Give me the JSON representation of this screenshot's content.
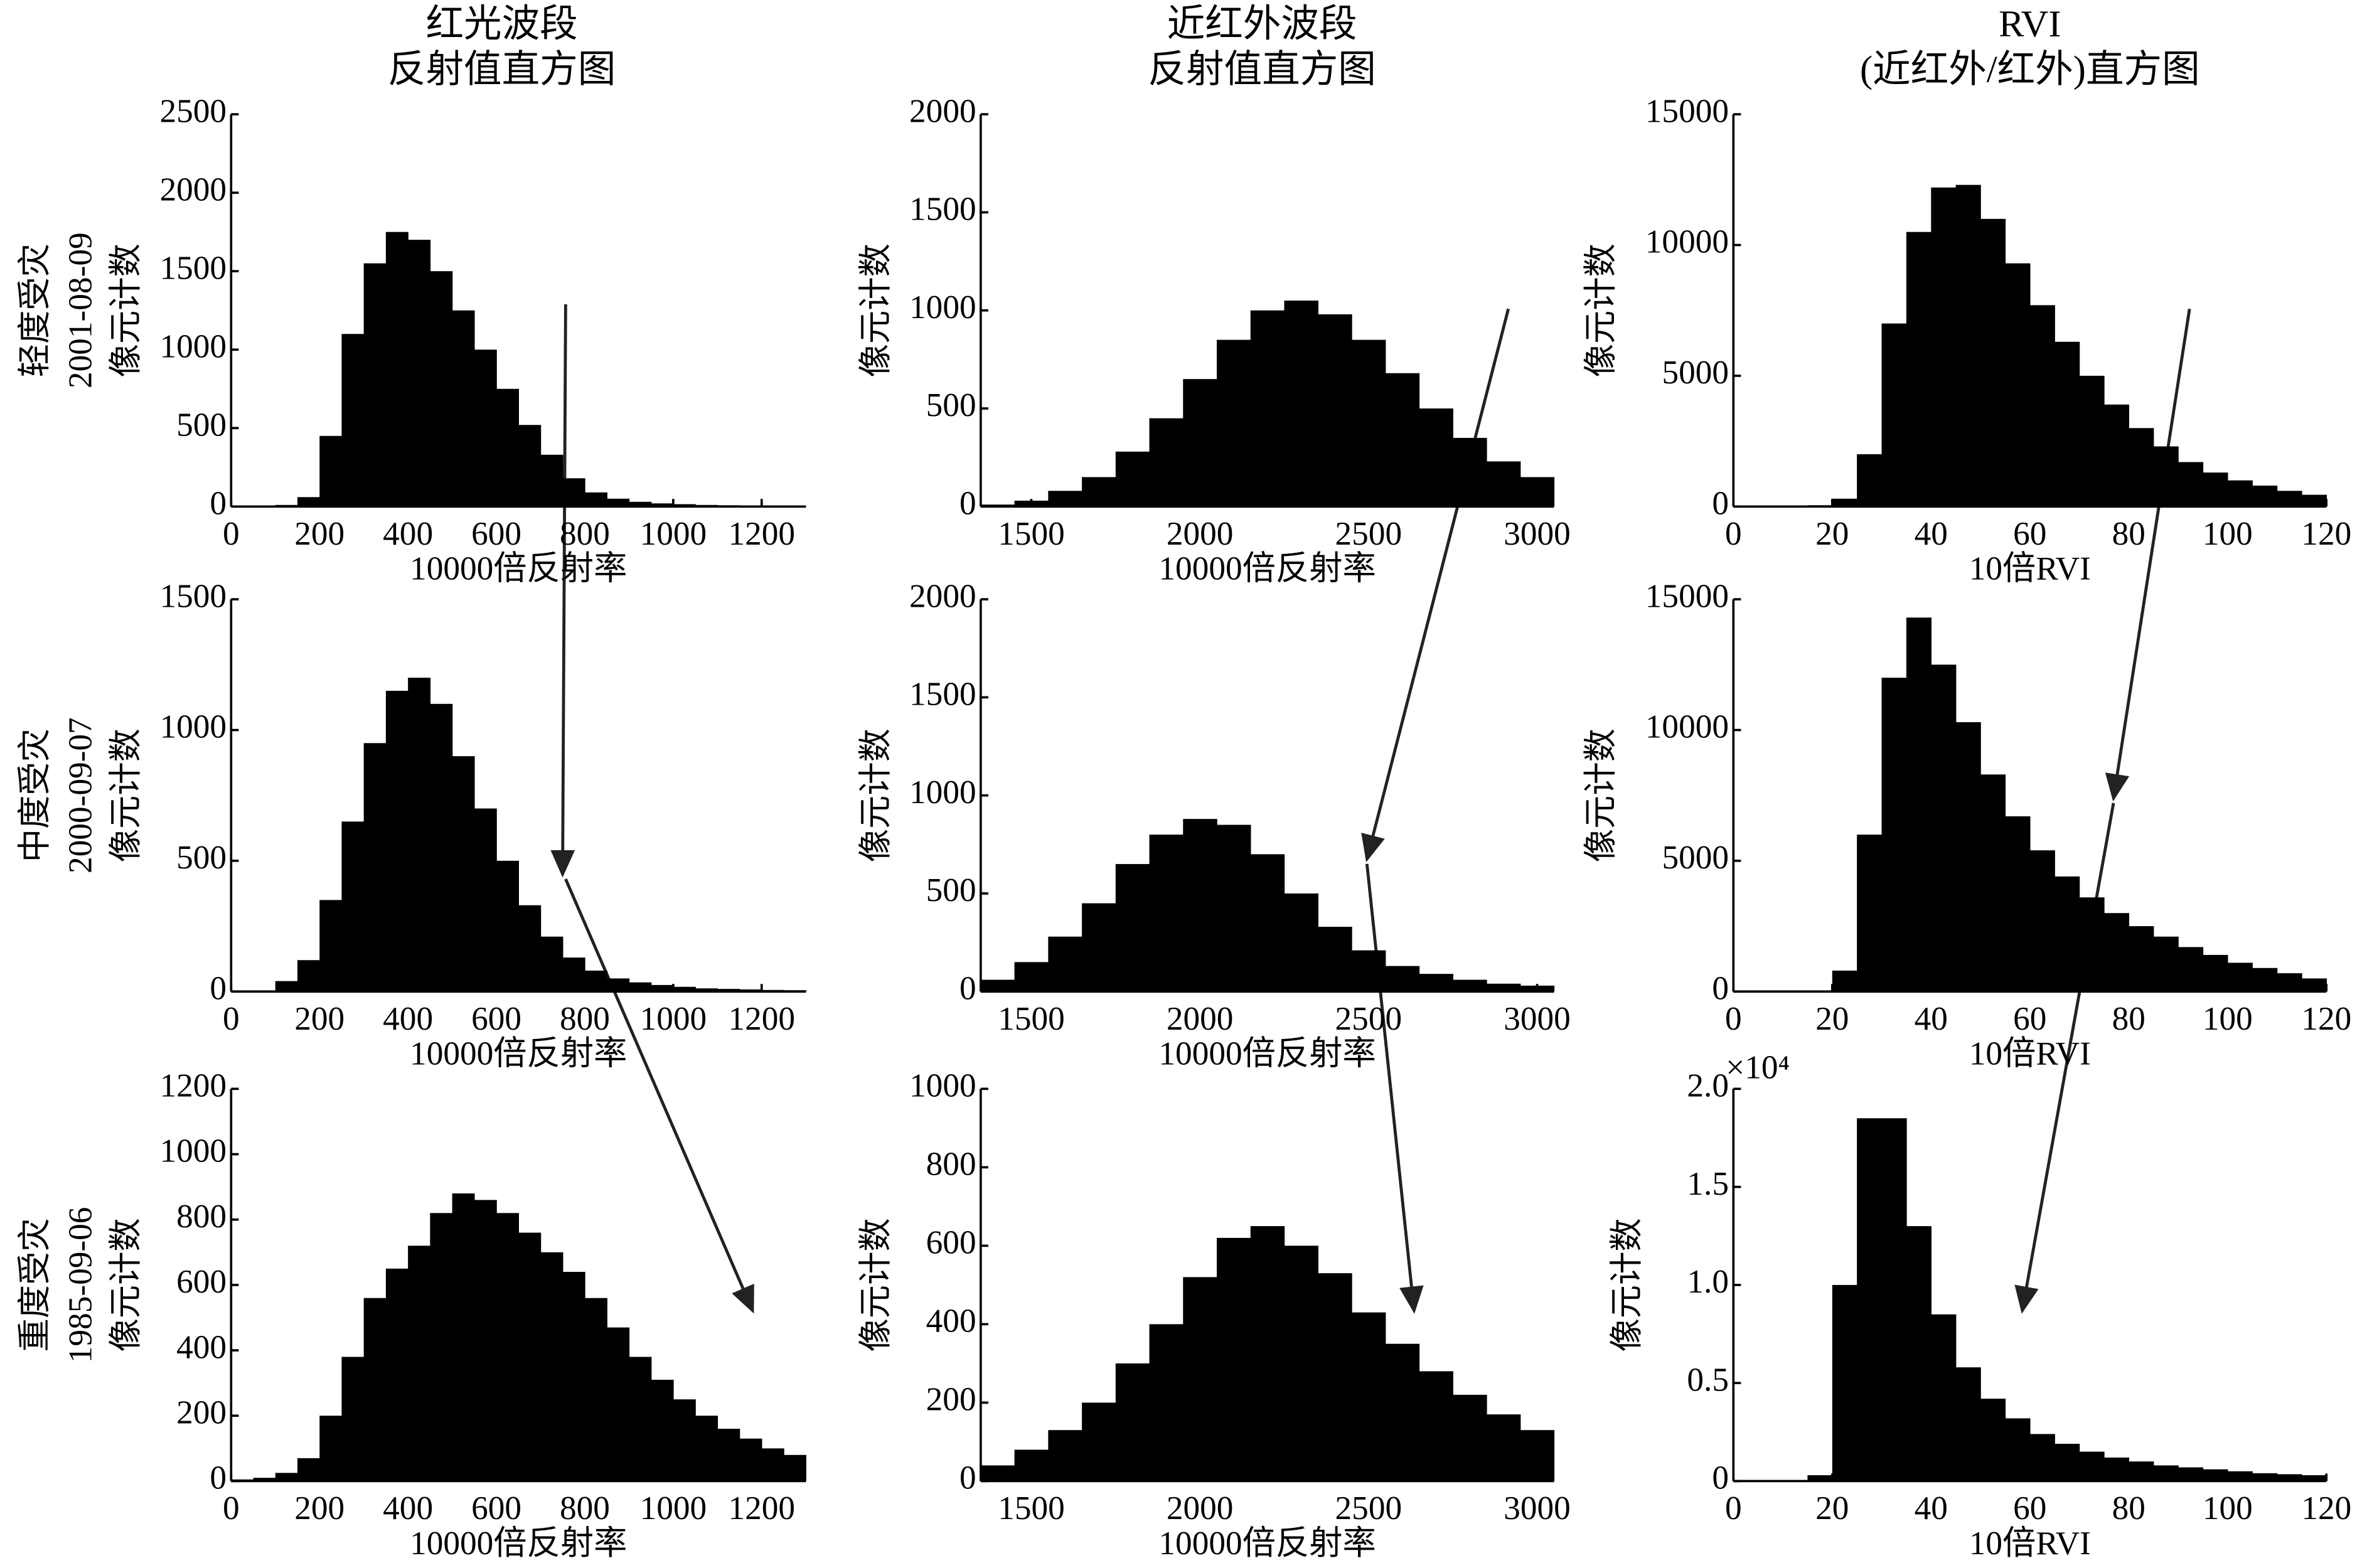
{
  "chart_data": [
    {
      "type": "histogram",
      "title": [
        "红光波段",
        "反射值直方图"
      ],
      "ylabel": [
        "轻度受灾",
        "2001-08-09",
        "像元计数"
      ],
      "xlabel": "10000倍反射率",
      "bins": [
        0,
        50,
        100,
        150,
        200,
        250,
        300,
        350,
        400,
        450,
        500,
        550,
        600,
        650,
        700,
        750,
        800,
        850,
        900,
        950,
        1000,
        1050,
        1100,
        1150,
        1200,
        1250,
        1300
      ],
      "values": [
        0,
        0,
        10,
        60,
        450,
        1100,
        1550,
        1750,
        1700,
        1500,
        1250,
        1000,
        750,
        520,
        330,
        180,
        90,
        50,
        30,
        20,
        15,
        10,
        8,
        6,
        5,
        4
      ],
      "color": "#000000",
      "xlim": [
        0,
        1300
      ],
      "xticks": [
        0,
        200,
        400,
        600,
        800,
        1000,
        1200
      ],
      "ylim": [
        0,
        2500
      ],
      "yticks": [
        0,
        500,
        1000,
        1500,
        2000,
        2500
      ]
    },
    {
      "type": "histogram",
      "title": [
        "近红外波段",
        "反射值直方图"
      ],
      "ylabel": [
        "像元计数"
      ],
      "xlabel": "10000倍反射率",
      "bins": [
        1350,
        1450,
        1550,
        1650,
        1750,
        1850,
        1950,
        2050,
        2150,
        2250,
        2350,
        2450,
        2550,
        2650,
        2750,
        2850,
        2950,
        3050
      ],
      "values": [
        10,
        30,
        80,
        150,
        280,
        450,
        650,
        850,
        1000,
        1050,
        980,
        850,
        680,
        500,
        350,
        230,
        150
      ],
      "color": "#000000",
      "xlim": [
        1350,
        3050
      ],
      "xticks": [
        1500,
        2000,
        2500,
        3000
      ],
      "ylim": [
        0,
        2000
      ],
      "yticks": [
        0,
        500,
        1000,
        1500,
        2000
      ]
    },
    {
      "type": "histogram",
      "title": [
        "RVI",
        "(近红外/红外)直方图"
      ],
      "ylabel": [
        "像元计数"
      ],
      "xlabel": "10倍RVI",
      "bins": [
        0,
        5,
        10,
        15,
        20,
        25,
        30,
        35,
        40,
        45,
        50,
        55,
        60,
        65,
        70,
        75,
        80,
        85,
        90,
        95,
        100,
        105,
        110,
        115,
        120
      ],
      "values": [
        0,
        0,
        0,
        50,
        300,
        2000,
        7000,
        10500,
        12200,
        12300,
        11000,
        9300,
        7700,
        6300,
        5000,
        3900,
        3000,
        2300,
        1700,
        1300,
        1000,
        800,
        600,
        450
      ],
      "color": "#000000",
      "xlim": [
        0,
        120
      ],
      "xticks": [
        0,
        20,
        40,
        60,
        80,
        100,
        120
      ],
      "ylim": [
        0,
        15000
      ],
      "yticks": [
        0,
        5000,
        10000,
        15000
      ]
    },
    {
      "type": "histogram",
      "ylabel": [
        "中度受灾",
        "2000-09-07",
        "像元计数"
      ],
      "xlabel": "10000倍反射率",
      "bins": [
        0,
        50,
        100,
        150,
        200,
        250,
        300,
        350,
        400,
        450,
        500,
        550,
        600,
        650,
        700,
        750,
        800,
        850,
        900,
        950,
        1000,
        1050,
        1100,
        1150,
        1200,
        1250,
        1300
      ],
      "values": [
        0,
        0,
        40,
        120,
        350,
        650,
        950,
        1150,
        1200,
        1100,
        900,
        700,
        500,
        330,
        210,
        130,
        80,
        50,
        35,
        25,
        18,
        12,
        10,
        8,
        6,
        5
      ],
      "color": "#000000",
      "xlim": [
        0,
        1300
      ],
      "xticks": [
        0,
        200,
        400,
        600,
        800,
        1000,
        1200
      ],
      "ylim": [
        0,
        1500
      ],
      "yticks": [
        0,
        500,
        1000,
        1500
      ]
    },
    {
      "type": "histogram",
      "ylabel": [
        "像元计数"
      ],
      "xlabel": "10000倍反射率",
      "bins": [
        1350,
        1450,
        1550,
        1650,
        1750,
        1850,
        1950,
        2050,
        2150,
        2250,
        2350,
        2450,
        2550,
        2650,
        2750,
        2850,
        2950,
        3050
      ],
      "values": [
        60,
        150,
        280,
        450,
        650,
        800,
        880,
        850,
        700,
        500,
        330,
        210,
        130,
        90,
        60,
        40,
        30
      ],
      "color": "#000000",
      "xlim": [
        1350,
        3050
      ],
      "xticks": [
        1500,
        2000,
        2500,
        3000
      ],
      "ylim": [
        0,
        2000
      ],
      "yticks": [
        0,
        500,
        1000,
        1500,
        2000
      ]
    },
    {
      "type": "histogram",
      "ylabel": [
        "像元计数"
      ],
      "xlabel": "10倍RVI",
      "bins": [
        0,
        5,
        10,
        15,
        20,
        25,
        30,
        35,
        40,
        45,
        50,
        55,
        60,
        65,
        70,
        75,
        80,
        85,
        90,
        95,
        100,
        105,
        110,
        115,
        120
      ],
      "values": [
        0,
        0,
        0,
        20,
        800,
        6000,
        12000,
        14300,
        12500,
        10300,
        8300,
        6700,
        5400,
        4400,
        3600,
        3000,
        2500,
        2100,
        1700,
        1400,
        1100,
        900,
        700,
        500
      ],
      "color": "#000000",
      "xlim": [
        0,
        120
      ],
      "xticks": [
        0,
        20,
        40,
        60,
        80,
        100,
        120
      ],
      "ylim": [
        0,
        15000
      ],
      "yticks": [
        0,
        5000,
        10000,
        15000
      ]
    },
    {
      "type": "histogram",
      "ylabel": [
        "重度受灾",
        "1985-09-06",
        "像元计数"
      ],
      "xlabel": "10000倍反射率",
      "bins": [
        0,
        50,
        100,
        150,
        200,
        250,
        300,
        350,
        400,
        450,
        500,
        550,
        600,
        650,
        700,
        750,
        800,
        850,
        900,
        950,
        1000,
        1050,
        1100,
        1150,
        1200,
        1250,
        1300
      ],
      "values": [
        5,
        10,
        25,
        70,
        200,
        380,
        560,
        650,
        720,
        820,
        880,
        860,
        820,
        760,
        700,
        640,
        560,
        470,
        380,
        310,
        250,
        200,
        160,
        130,
        100,
        80
      ],
      "color": "#000000",
      "xlim": [
        0,
        1300
      ],
      "xticks": [
        0,
        200,
        400,
        600,
        800,
        1000,
        1200
      ],
      "ylim": [
        0,
        1200
      ],
      "yticks": [
        0,
        200,
        400,
        600,
        800,
        1000,
        1200
      ]
    },
    {
      "type": "histogram",
      "ylabel": [
        "像元计数"
      ],
      "xlabel": "10000倍反射率",
      "bins": [
        1350,
        1450,
        1550,
        1650,
        1750,
        1850,
        1950,
        2050,
        2150,
        2250,
        2350,
        2450,
        2550,
        2650,
        2750,
        2850,
        2950,
        3050
      ],
      "values": [
        40,
        80,
        130,
        200,
        300,
        400,
        520,
        620,
        650,
        600,
        530,
        430,
        350,
        280,
        220,
        170,
        130
      ],
      "color": "#000000",
      "xlim": [
        1350,
        3050
      ],
      "xticks": [
        1500,
        2000,
        2500,
        3000
      ],
      "ylim": [
        0,
        1000
      ],
      "yticks": [
        0,
        200,
        400,
        600,
        800,
        1000
      ]
    },
    {
      "type": "histogram",
      "ylabel": [
        "像元计数"
      ],
      "xlabel": "10倍RVI",
      "y_multiplier": "×10⁴",
      "bins": [
        0,
        5,
        10,
        15,
        20,
        25,
        30,
        35,
        40,
        45,
        50,
        55,
        60,
        65,
        70,
        75,
        80,
        85,
        90,
        95,
        100,
        105,
        110,
        115,
        120
      ],
      "values": [
        0.005,
        0.005,
        0.005,
        0.03,
        1.0,
        1.85,
        1.85,
        1.3,
        0.85,
        0.58,
        0.42,
        0.32,
        0.24,
        0.19,
        0.15,
        0.12,
        0.1,
        0.08,
        0.07,
        0.06,
        0.05,
        0.04,
        0.035,
        0.03
      ],
      "color": "#000000",
      "xlim": [
        0,
        120
      ],
      "xticks": [
        0,
        20,
        40,
        60,
        80,
        100,
        120
      ],
      "ylim": [
        0,
        2
      ],
      "yticks": [
        0,
        {
          "value": 0.5,
          "label": "0.5"
        },
        {
          "value": 1,
          "label": "1.0"
        },
        {
          "value": 1.5,
          "label": "1.5"
        },
        {
          "value": 2,
          "label": "2.0"
        }
      ]
    }
  ]
}
